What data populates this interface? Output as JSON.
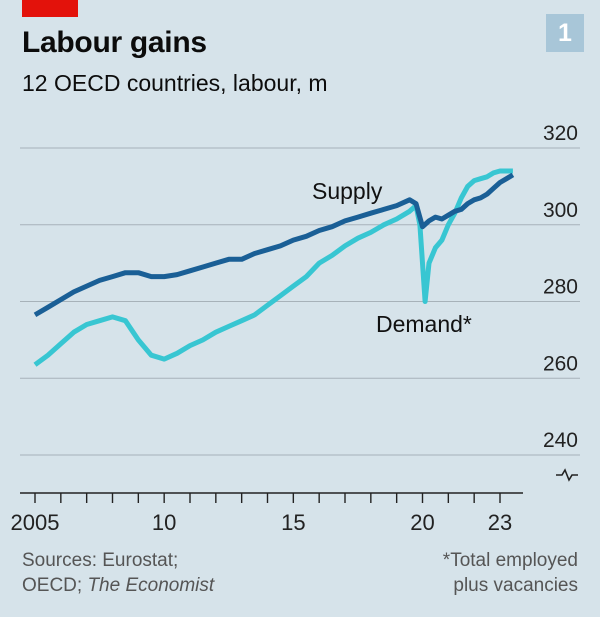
{
  "header": {
    "title": "Labour gains",
    "subtitle": "12 OECD countries, labour, m",
    "chart_number": "1"
  },
  "footer": {
    "source_line1": "Sources: Eurostat;",
    "source_line2_prefix": "OECD; ",
    "source_line2_italic": "The Economist",
    "note_line1": "*Total employed",
    "note_line2": "plus vacancies"
  },
  "colors": {
    "supply": "#1a5f96",
    "demand": "#38c6d2",
    "grid": "#a7b2b9",
    "accent": "#e3120b"
  },
  "chart_data": {
    "type": "line",
    "title": "Labour gains",
    "subtitle": "12 OECD countries, labour, m",
    "xlabel": "",
    "ylabel": "labour, m",
    "xlim": [
      2004.8,
      2023.6
    ],
    "ylim": [
      235,
      320
    ],
    "y_ticks": [
      240,
      260,
      280,
      300,
      320
    ],
    "x_ticks": [
      {
        "value": 2005,
        "label": "2005"
      },
      {
        "value": 2010,
        "label": "10"
      },
      {
        "value": 2015,
        "label": "15"
      },
      {
        "value": 2020,
        "label": "20"
      },
      {
        "value": 2023,
        "label": "23"
      }
    ],
    "axis_break": true,
    "series": [
      {
        "name": "Supply",
        "label": "Supply",
        "x": [
          2005.0,
          2005.5,
          2006.0,
          2006.5,
          2007.0,
          2007.5,
          2008.0,
          2008.5,
          2009.0,
          2009.5,
          2010.0,
          2010.5,
          2011.0,
          2011.5,
          2012.0,
          2012.5,
          2013.0,
          2013.5,
          2014.0,
          2014.5,
          2015.0,
          2015.5,
          2016.0,
          2016.5,
          2017.0,
          2017.5,
          2018.0,
          2018.5,
          2019.0,
          2019.5,
          2019.75,
          2020.0,
          2020.25,
          2020.5,
          2020.75,
          2021.0,
          2021.25,
          2021.5,
          2021.75,
          2022.0,
          2022.25,
          2022.5,
          2022.75,
          2023.0,
          2023.25,
          2023.5
        ],
        "y": [
          276.5,
          278.5,
          280.5,
          282.5,
          284.0,
          285.5,
          286.5,
          287.5,
          287.5,
          286.5,
          286.5,
          287.0,
          288.0,
          289.0,
          290.0,
          291.0,
          291.0,
          292.5,
          293.5,
          294.5,
          296.0,
          297.0,
          298.5,
          299.5,
          301.0,
          302.0,
          303.0,
          304.0,
          305.0,
          306.5,
          305.5,
          299.5,
          301.0,
          302.0,
          301.5,
          302.5,
          303.5,
          304.0,
          305.5,
          306.5,
          307.0,
          308.0,
          309.5,
          311.0,
          312.0,
          313.0
        ]
      },
      {
        "name": "Demand",
        "label": "Demand*",
        "x": [
          2005.0,
          2005.5,
          2006.0,
          2006.5,
          2007.0,
          2007.5,
          2008.0,
          2008.5,
          2009.0,
          2009.5,
          2010.0,
          2010.5,
          2011.0,
          2011.5,
          2012.0,
          2012.5,
          2013.0,
          2013.5,
          2014.0,
          2014.5,
          2015.0,
          2015.5,
          2016.0,
          2016.5,
          2017.0,
          2017.5,
          2018.0,
          2018.5,
          2019.0,
          2019.5,
          2019.75,
          2019.9,
          2020.1,
          2020.25,
          2020.5,
          2020.75,
          2021.0,
          2021.25,
          2021.5,
          2021.75,
          2022.0,
          2022.25,
          2022.5,
          2022.75,
          2023.0,
          2023.25,
          2023.5
        ],
        "y": [
          263.5,
          266.0,
          269.0,
          272.0,
          274.0,
          275.0,
          276.0,
          275.0,
          270.0,
          266.0,
          265.0,
          266.5,
          268.5,
          270.0,
          272.0,
          273.5,
          275.0,
          276.5,
          279.0,
          281.5,
          284.0,
          286.5,
          290.0,
          292.0,
          294.5,
          296.5,
          298.0,
          300.0,
          301.5,
          303.5,
          305.0,
          300.0,
          280.0,
          290.0,
          294.0,
          296.0,
          300.0,
          303.0,
          307.0,
          310.0,
          311.5,
          312.0,
          312.5,
          313.5,
          314.0,
          314.0,
          314.0
        ]
      }
    ],
    "annotations": [
      {
        "text": "Supply",
        "series": "Supply"
      },
      {
        "text": "Demand*",
        "series": "Demand"
      }
    ]
  }
}
